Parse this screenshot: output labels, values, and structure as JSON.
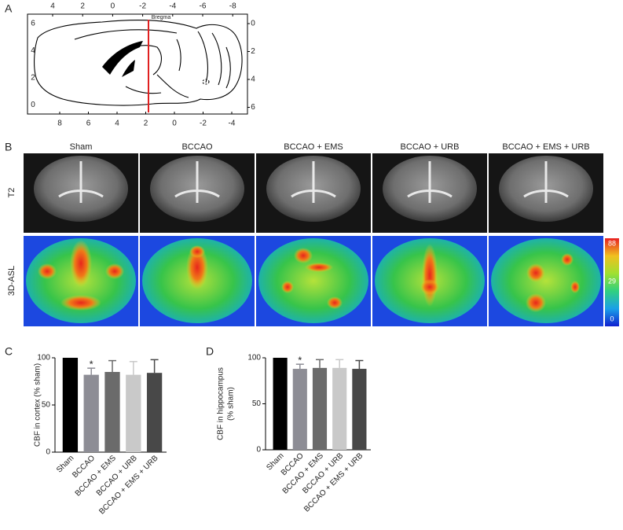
{
  "panel_a": {
    "label": "A",
    "bregma": "Bregma",
    "top_ticks": [
      4,
      2,
      0,
      -2,
      -4,
      -6,
      -8
    ],
    "bottom_ticks": [
      8,
      6,
      4,
      2,
      0,
      -2,
      -4
    ],
    "left_ticks": [
      6,
      4,
      2,
      0
    ],
    "right_ticks": [
      0,
      2,
      4,
      6
    ]
  },
  "panel_b": {
    "label": "B",
    "columns": [
      "Sham",
      "BCCAO",
      "BCCAO + EMS",
      "BCCAO + URB",
      "BCCAO + EMS + URB"
    ],
    "rows": [
      "T2",
      "3D-ASL"
    ],
    "colorbar_ticks": [
      88,
      29,
      0
    ]
  },
  "chart_data": [
    {
      "type": "bar",
      "label": "C",
      "y_label": [
        "CBF in cortex (% sham)"
      ],
      "categories": [
        "Sham",
        "BCCAO",
        "BCCAO + EMS",
        "BCCAO + URB",
        "BCCAO + EMS + URB"
      ],
      "values": [
        100,
        82,
        85,
        82,
        84
      ],
      "errors": [
        0,
        7,
        12,
        14,
        14
      ],
      "colors": [
        "#000000",
        "#8d8d95",
        "#6b6b6b",
        "#c9c9c9",
        "#484848"
      ],
      "annotations": [
        "*"
      ],
      "annotation_index": [
        1
      ],
      "ylim": [
        0,
        100
      ],
      "yticks": [
        0,
        50,
        100
      ]
    },
    {
      "type": "bar",
      "label": "D",
      "y_label": [
        "CBF in hippocampus",
        "(% sham)"
      ],
      "categories": [
        "Sham",
        "BCCAO",
        "BCCAO + EMS",
        "BCCAO + URB",
        "BCCAO + EMS + URB"
      ],
      "values": [
        100,
        88,
        89,
        89,
        88
      ],
      "errors": [
        0,
        5,
        9,
        9,
        9
      ],
      "colors": [
        "#000000",
        "#8d8d95",
        "#6b6b6b",
        "#c9c9c9",
        "#484848"
      ],
      "annotations": [
        "*"
      ],
      "annotation_index": [
        1
      ],
      "ylim": [
        0,
        100
      ],
      "yticks": [
        0,
        50,
        100
      ]
    }
  ]
}
